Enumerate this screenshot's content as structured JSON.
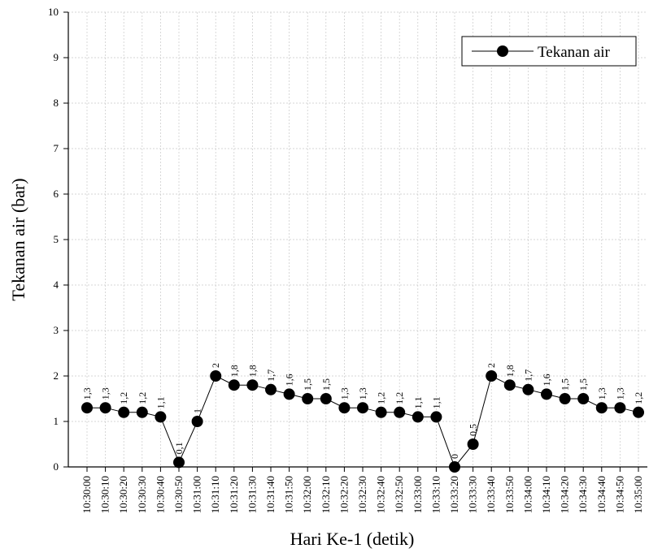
{
  "chart_data": {
    "type": "line",
    "xlabel": "Hari Ke-1 (detik)",
    "ylabel": "Tekanan air (bar)",
    "ylim": [
      0,
      10
    ],
    "yticks": [
      "0",
      "1",
      "2",
      "3",
      "4",
      "5",
      "6",
      "7",
      "8",
      "9",
      "10"
    ],
    "grid": true,
    "legend": "top-right",
    "series": [
      {
        "name": "Tekanan air",
        "color": "#000000",
        "x": [
          "10:30:00",
          "10:30:10",
          "10:30:20",
          "10:30:30",
          "10:30:40",
          "10:30:50",
          "10:31:00",
          "10:31:10",
          "10:31:20",
          "10:31:30",
          "10:31:40",
          "10:31:50",
          "10:32:00",
          "10:32:10",
          "10:32:20",
          "10:32:30",
          "10:32:40",
          "10:32:50",
          "10:33:00",
          "10:33:10",
          "10:33:20",
          "10:33:30",
          "10:33:40",
          "10:33:50",
          "10:34:00",
          "10:34:10",
          "10:34:20",
          "10:34:30",
          "10:34:40",
          "10:34:50",
          "10:35:00"
        ],
        "values": [
          1.3,
          1.3,
          1.2,
          1.2,
          1.1,
          0.1,
          1,
          2,
          1.8,
          1.8,
          1.7,
          1.6,
          1.5,
          1.5,
          1.3,
          1.3,
          1.2,
          1.2,
          1.1,
          1.1,
          0,
          0.5,
          2,
          1.8,
          1.7,
          1.6,
          1.5,
          1.5,
          1.3,
          1.3,
          1.2
        ],
        "labels": [
          "1,3",
          "1,3",
          "1,2",
          "1,2",
          "1,1",
          "0,1",
          "1",
          "2",
          "1,8",
          "1,8",
          "1,7",
          "1,6",
          "1,5",
          "1,5",
          "1,3",
          "1,3",
          "1,2",
          "1,2",
          "1,1",
          "1,1",
          "0",
          "0,5",
          "2",
          "1,8",
          "1,7",
          "1,6",
          "1,5",
          "1,5",
          "1,3",
          "1,3",
          "1,2"
        ]
      }
    ]
  }
}
